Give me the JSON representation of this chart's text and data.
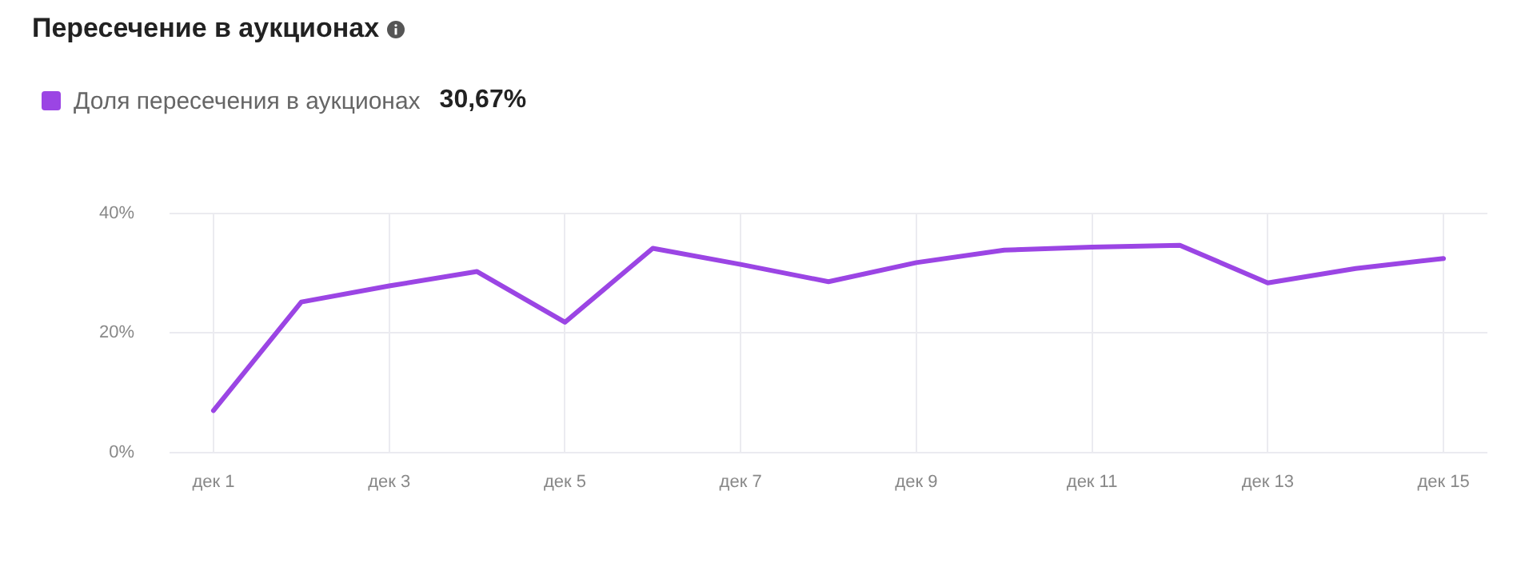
{
  "chart_data": {
    "type": "line",
    "title": "Пересечение в аукционах",
    "categories": [
      "дек 1",
      null,
      "дек 3",
      null,
      "дек 5",
      null,
      "дек 7",
      null,
      "дек 9",
      null,
      "дек 11",
      null,
      "дек 13",
      null,
      "дек 15"
    ],
    "series": [
      {
        "name": "Доля пересечения в аукционах",
        "color": "#9b45e4",
        "values": [
          7.0,
          25.2,
          27.9,
          30.3,
          21.8,
          34.2,
          31.5,
          28.6,
          31.8,
          33.9,
          34.4,
          34.7,
          28.4,
          30.8,
          32.5
        ]
      }
    ],
    "ylim": [
      0,
      40
    ],
    "yticks": [
      {
        "value": 0,
        "label": "0%"
      },
      {
        "value": 20,
        "label": "20%"
      },
      {
        "value": 40,
        "label": "40%"
      }
    ],
    "grid": true,
    "legend": "top left",
    "marker": "none",
    "line_style": "solid",
    "annotations": [
      "30,67%"
    ]
  }
}
